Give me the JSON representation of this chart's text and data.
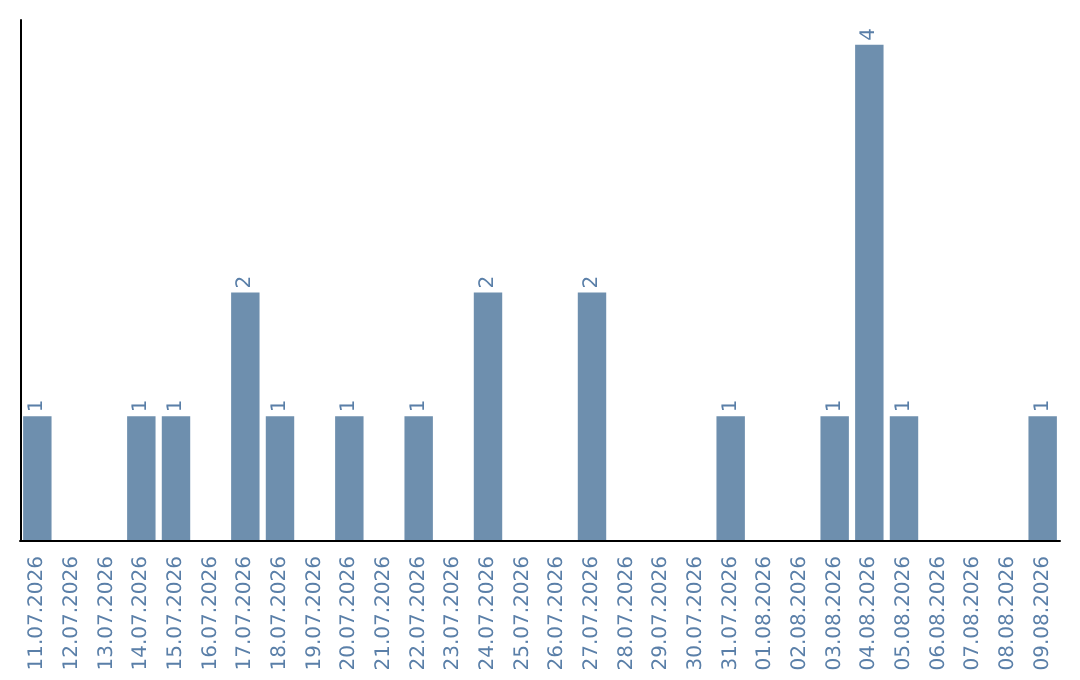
{
  "chart_data": {
    "type": "bar",
    "categories": [
      "11.07.2026",
      "12.07.2026",
      "13.07.2026",
      "14.07.2026",
      "15.07.2026",
      "16.07.2026",
      "17.07.2026",
      "18.07.2026",
      "19.07.2026",
      "20.07.2026",
      "21.07.2026",
      "22.07.2026",
      "23.07.2026",
      "24.07.2026",
      "25.07.2026",
      "26.07.2026",
      "27.07.2026",
      "28.07.2026",
      "29.07.2026",
      "30.07.2026",
      "31.07.2026",
      "01.08.2026",
      "02.08.2026",
      "03.08.2026",
      "04.08.2026",
      "05.08.2026",
      "06.08.2026",
      "07.08.2026",
      "08.08.2026",
      "09.08.2026"
    ],
    "values": [
      1,
      0,
      0,
      1,
      1,
      0,
      2,
      1,
      0,
      1,
      0,
      1,
      0,
      2,
      0,
      0,
      2,
      0,
      0,
      0,
      1,
      0,
      0,
      1,
      4,
      1,
      0,
      0,
      0,
      1
    ],
    "value_labels": [
      "1",
      null,
      null,
      "1",
      "1",
      null,
      "2",
      "1",
      null,
      "1",
      null,
      "1",
      null,
      "2",
      null,
      null,
      "2",
      null,
      null,
      null,
      "1",
      null,
      null,
      "1",
      "4",
      "1",
      null,
      null,
      null,
      "1"
    ],
    "color": "#6e8fae",
    "tick_labels": "x"
  }
}
